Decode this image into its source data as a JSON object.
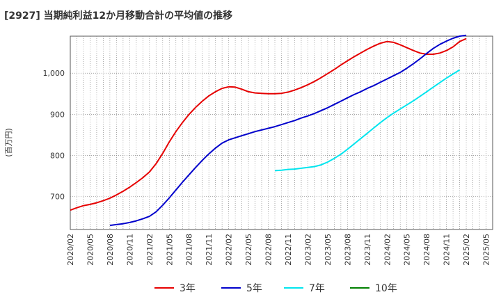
{
  "chart_data": {
    "type": "line",
    "title": "[2927]  当期純利益12か月移動合計の平均値の推移",
    "ylabel": "(百万円)",
    "xlabel": "",
    "ylim": [
      620,
      1090
    ],
    "y_ticks": [
      700,
      800,
      900,
      1000
    ],
    "y_tick_labels": [
      "700",
      "800",
      "900",
      "1,000"
    ],
    "x_tick_labels": [
      "2020/02",
      "2020/05",
      "2020/08",
      "2020/11",
      "2021/02",
      "2021/05",
      "2021/08",
      "2021/11",
      "2022/02",
      "2022/05",
      "2022/08",
      "2022/11",
      "2023/02",
      "2023/05",
      "2023/08",
      "2023/11",
      "2024/02",
      "2024/05",
      "2024/08",
      "2024/11",
      "2025/02",
      "2025/05"
    ],
    "grid": true,
    "legend_position": "bottom",
    "series": [
      {
        "name": "3年",
        "color": "#e60000",
        "x": [
          0,
          1,
          2,
          3,
          4,
          5,
          6,
          7,
          8,
          9,
          10,
          11,
          12,
          13,
          14,
          15,
          16,
          17,
          18,
          19,
          20,
          21,
          22,
          23,
          24,
          25,
          26,
          27,
          28,
          29,
          30,
          31,
          32,
          33,
          34,
          35,
          36,
          37,
          38,
          39,
          40,
          41,
          42,
          43,
          44,
          45,
          46,
          47,
          48,
          49,
          50,
          51,
          52,
          53,
          54,
          55,
          56,
          57,
          58,
          59,
          60
        ],
        "values": [
          667,
          673,
          678,
          681,
          685,
          690,
          696,
          704,
          713,
          723,
          734,
          746,
          760,
          780,
          805,
          833,
          858,
          880,
          900,
          917,
          932,
          945,
          955,
          963,
          967,
          966,
          961,
          955,
          952,
          951,
          950,
          950,
          951,
          954,
          959,
          965,
          972,
          980,
          989,
          999,
          1009,
          1020,
          1030,
          1040,
          1049,
          1058,
          1066,
          1073,
          1077,
          1075,
          1069,
          1062,
          1055,
          1049,
          1046,
          1046,
          1049,
          1055,
          1064,
          1077,
          1084
        ]
      },
      {
        "name": "5年",
        "color": "#0000cc",
        "x": [
          6,
          7,
          8,
          9,
          10,
          11,
          12,
          13,
          14,
          15,
          16,
          17,
          18,
          19,
          20,
          21,
          22,
          23,
          24,
          25,
          26,
          27,
          28,
          29,
          30,
          31,
          32,
          33,
          34,
          35,
          36,
          37,
          38,
          39,
          40,
          41,
          42,
          43,
          44,
          45,
          46,
          47,
          48,
          49,
          50,
          51,
          52,
          53,
          54,
          55,
          56,
          57,
          58,
          59,
          60
        ],
        "values": [
          630,
          632,
          634,
          637,
          641,
          646,
          652,
          663,
          679,
          697,
          716,
          735,
          753,
          771,
          788,
          804,
          818,
          830,
          838,
          843,
          848,
          853,
          858,
          862,
          866,
          870,
          875,
          880,
          885,
          891,
          896,
          902,
          909,
          916,
          924,
          932,
          940,
          948,
          955,
          963,
          970,
          978,
          986,
          994,
          1002,
          1012,
          1023,
          1035,
          1048,
          1060,
          1070,
          1078,
          1085,
          1090,
          1092
        ]
      },
      {
        "name": "7年",
        "color": "#00e5ee",
        "x": [
          31,
          32,
          33,
          34,
          35,
          36,
          37,
          38,
          39,
          40,
          41,
          42,
          43,
          44,
          45,
          46,
          47,
          48,
          49,
          50,
          51,
          52,
          53,
          54,
          55,
          56,
          57,
          58,
          59
        ],
        "values": [
          763,
          764,
          766,
          767,
          769,
          771,
          773,
          777,
          784,
          793,
          803,
          815,
          828,
          841,
          854,
          867,
          880,
          892,
          903,
          913,
          923,
          933,
          944,
          955,
          966,
          977,
          988,
          998,
          1008
        ]
      },
      {
        "name": "10年",
        "color": "#008000",
        "x": [],
        "values": []
      }
    ]
  }
}
